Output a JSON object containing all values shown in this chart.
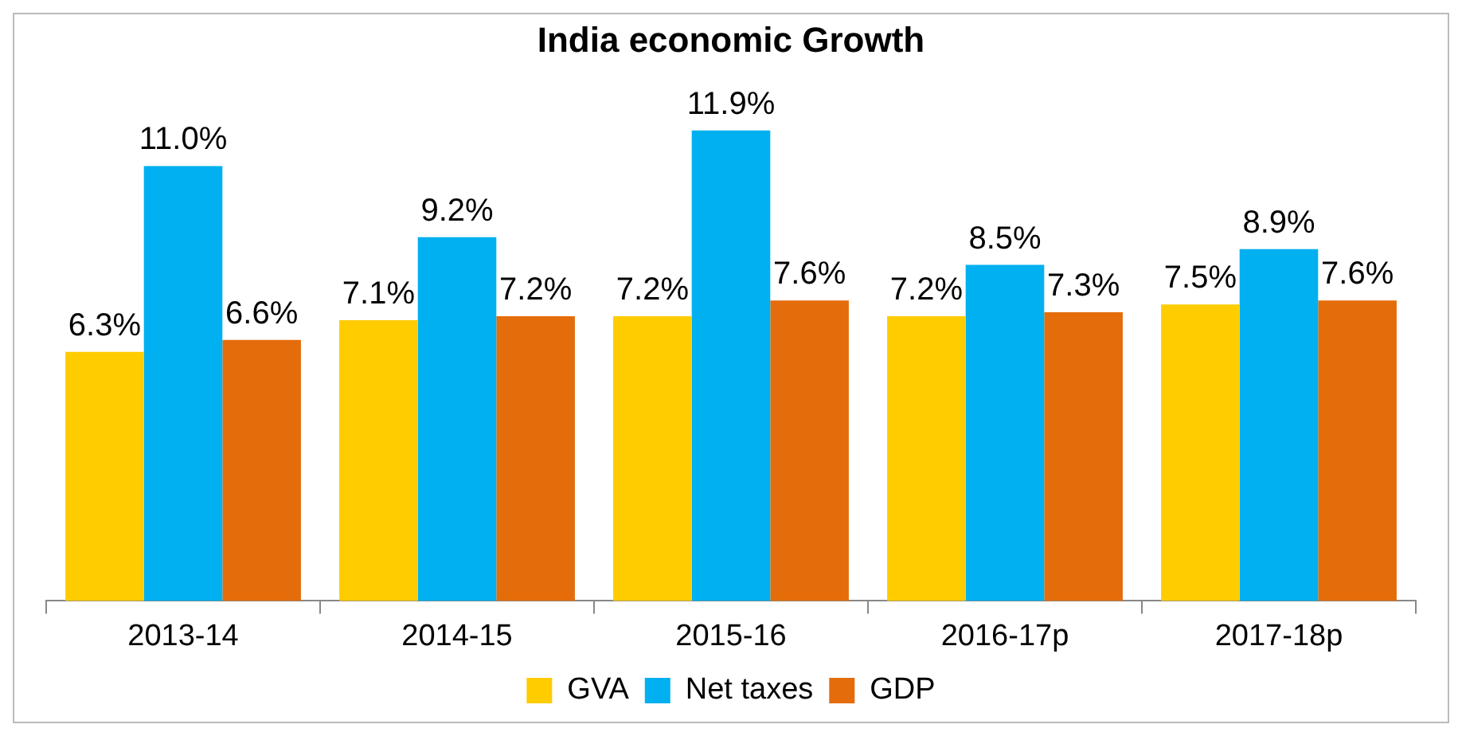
{
  "chart_data": {
    "type": "bar",
    "title": "India economic Growth",
    "categories": [
      "2013-14",
      "2014-15",
      "2015-16",
      "2016-17p",
      "2017-18p"
    ],
    "series": [
      {
        "name": "GVA",
        "color": "#ffcc00",
        "values": [
          6.3,
          7.1,
          7.2,
          7.2,
          7.5
        ],
        "value_labels": [
          "6.3%",
          "7.1%",
          "7.2%",
          "7.2%",
          "7.5%"
        ]
      },
      {
        "name": "Net taxes",
        "color": "#00b0f0",
        "values": [
          11.0,
          9.2,
          11.9,
          8.5,
          8.9
        ],
        "value_labels": [
          "11.0%",
          "9.2%",
          "11.9%",
          "8.5%",
          "8.9%"
        ]
      },
      {
        "name": "GDP",
        "color": "#e46c0a",
        "values": [
          6.6,
          7.2,
          7.6,
          7.3,
          7.6
        ],
        "value_labels": [
          "6.6%",
          "7.2%",
          "7.6%",
          "7.3%",
          "7.6%"
        ]
      }
    ],
    "legend": "bottom",
    "grid": false
  }
}
